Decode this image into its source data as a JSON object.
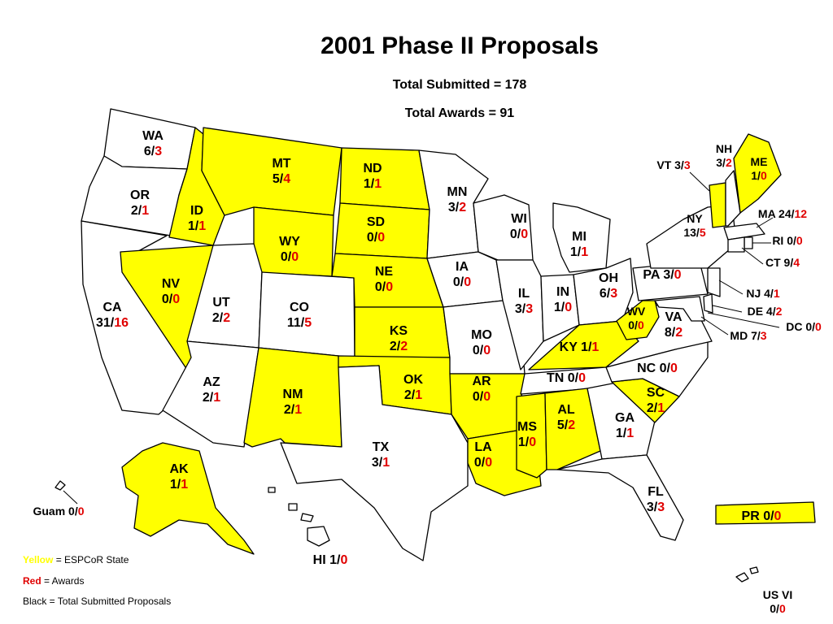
{
  "title": "2001 Phase II Proposals",
  "subtitle_submitted": "Total Submitted = 178",
  "subtitle_awards": "Total Awards = 91",
  "colors": {
    "espcor": "#ffff00",
    "non_espcor": "#ffffff",
    "awards": "#e00000",
    "submitted": "#000000"
  },
  "legend": {
    "yellow_word": "Yellow",
    "yellow_rest": " = ESPCoR State",
    "red_word": "Red",
    "red_rest": " = Awards",
    "black": "Black = Total Submitted Proposals"
  },
  "states": [
    {
      "abbr": "WA",
      "submitted": "6",
      "awards": "3",
      "espcor": false
    },
    {
      "abbr": "OR",
      "submitted": "2",
      "awards": "1",
      "espcor": false
    },
    {
      "abbr": "CA",
      "submitted": "31",
      "awards": "16",
      "espcor": false
    },
    {
      "abbr": "NV",
      "submitted": "0",
      "awards": "0",
      "espcor": true
    },
    {
      "abbr": "ID",
      "submitted": "1",
      "awards": "1",
      "espcor": true
    },
    {
      "abbr": "MT",
      "submitted": "5",
      "awards": "4",
      "espcor": true
    },
    {
      "abbr": "WY",
      "submitted": "0",
      "awards": "0",
      "espcor": true
    },
    {
      "abbr": "UT",
      "submitted": "2",
      "awards": "2",
      "espcor": false
    },
    {
      "abbr": "AZ",
      "submitted": "2",
      "awards": "1",
      "espcor": false
    },
    {
      "abbr": "CO",
      "submitted": "11",
      "awards": "5",
      "espcor": false
    },
    {
      "abbr": "NM",
      "submitted": "2",
      "awards": "1",
      "espcor": true
    },
    {
      "abbr": "ND",
      "submitted": "1",
      "awards": "1",
      "espcor": true
    },
    {
      "abbr": "SD",
      "submitted": "0",
      "awards": "0",
      "espcor": true
    },
    {
      "abbr": "NE",
      "submitted": "0",
      "awards": "0",
      "espcor": true
    },
    {
      "abbr": "KS",
      "submitted": "2",
      "awards": "2",
      "espcor": true
    },
    {
      "abbr": "OK",
      "submitted": "2",
      "awards": "1",
      "espcor": true
    },
    {
      "abbr": "TX",
      "submitted": "3",
      "awards": "1",
      "espcor": false
    },
    {
      "abbr": "MN",
      "submitted": "3",
      "awards": "2",
      "espcor": false
    },
    {
      "abbr": "IA",
      "submitted": "0",
      "awards": "0",
      "espcor": false
    },
    {
      "abbr": "MO",
      "submitted": "0",
      "awards": "0",
      "espcor": false
    },
    {
      "abbr": "AR",
      "submitted": "0",
      "awards": "0",
      "espcor": true
    },
    {
      "abbr": "LA",
      "submitted": "0",
      "awards": "0",
      "espcor": true
    },
    {
      "abbr": "WI",
      "submitted": "0",
      "awards": "0",
      "espcor": false
    },
    {
      "abbr": "IL",
      "submitted": "3",
      "awards": "3",
      "espcor": false
    },
    {
      "abbr": "MI",
      "submitted": "1",
      "awards": "1",
      "espcor": false
    },
    {
      "abbr": "IN",
      "submitted": "1",
      "awards": "0",
      "espcor": false
    },
    {
      "abbr": "OH",
      "submitted": "6",
      "awards": "3",
      "espcor": false
    },
    {
      "abbr": "KY",
      "submitted": "1",
      "awards": "1",
      "espcor": true
    },
    {
      "abbr": "TN",
      "submitted": "0",
      "awards": "0",
      "espcor": false
    },
    {
      "abbr": "MS",
      "submitted": "1",
      "awards": "0",
      "espcor": true
    },
    {
      "abbr": "AL",
      "submitted": "5",
      "awards": "2",
      "espcor": true
    },
    {
      "abbr": "GA",
      "submitted": "1",
      "awards": "1",
      "espcor": false
    },
    {
      "abbr": "FL",
      "submitted": "3",
      "awards": "3",
      "espcor": false
    },
    {
      "abbr": "SC",
      "submitted": "2",
      "awards": "1",
      "espcor": true
    },
    {
      "abbr": "NC",
      "submitted": "0",
      "awards": "0",
      "espcor": false
    },
    {
      "abbr": "VA",
      "submitted": "8",
      "awards": "2",
      "espcor": false
    },
    {
      "abbr": "WV",
      "submitted": "0",
      "awards": "0",
      "espcor": true
    },
    {
      "abbr": "PA",
      "submitted": "3",
      "awards": "0",
      "espcor": false
    },
    {
      "abbr": "NY",
      "submitted": "13",
      "awards": "5",
      "espcor": false
    },
    {
      "abbr": "VT",
      "submitted": "3",
      "awards": "3",
      "espcor": true
    },
    {
      "abbr": "NH",
      "submitted": "3",
      "awards": "2",
      "espcor": false
    },
    {
      "abbr": "ME",
      "submitted": "1",
      "awards": "0",
      "espcor": true
    },
    {
      "abbr": "MA",
      "submitted": "24",
      "awards": "12",
      "espcor": false
    },
    {
      "abbr": "RI",
      "submitted": "0",
      "awards": "0",
      "espcor": false
    },
    {
      "abbr": "CT",
      "submitted": "9",
      "awards": "4",
      "espcor": false
    },
    {
      "abbr": "NJ",
      "submitted": "4",
      "awards": "1",
      "espcor": false
    },
    {
      "abbr": "DE",
      "submitted": "4",
      "awards": "2",
      "espcor": false
    },
    {
      "abbr": "DC",
      "submitted": "0",
      "awards": "0",
      "espcor": false
    },
    {
      "abbr": "MD",
      "submitted": "7",
      "awards": "3",
      "espcor": false
    },
    {
      "abbr": "AK",
      "submitted": "1",
      "awards": "1",
      "espcor": true
    },
    {
      "abbr": "HI",
      "submitted": "1",
      "awards": "0",
      "espcor": false
    },
    {
      "abbr": "Guam",
      "submitted": "0",
      "awards": "0",
      "espcor": false
    },
    {
      "abbr": "PR",
      "submitted": "0",
      "awards": "0",
      "espcor": true
    },
    {
      "abbr": "US VI",
      "submitted": "0",
      "awards": "0",
      "espcor": false
    }
  ]
}
